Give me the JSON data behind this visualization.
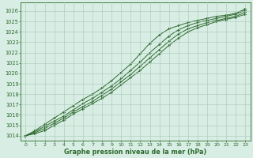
{
  "xlabel": "Graphe pression niveau de la mer (hPa)",
  "background_color": "#d8ede4",
  "plot_bg_color": "#d8ede4",
  "grid_color": "#a8c8b8",
  "line_color": "#2d6a2d",
  "text_color": "#2d6a2d",
  "xlim": [
    -0.5,
    23.5
  ],
  "ylim": [
    1013.5,
    1026.8
  ],
  "yticks": [
    1014,
    1015,
    1016,
    1017,
    1018,
    1019,
    1020,
    1021,
    1022,
    1023,
    1024,
    1025,
    1026
  ],
  "xticks": [
    0,
    1,
    2,
    3,
    4,
    5,
    6,
    7,
    8,
    9,
    10,
    11,
    12,
    13,
    14,
    15,
    16,
    17,
    18,
    19,
    20,
    21,
    22,
    23
  ],
  "lines": [
    {
      "x": [
        0,
        1,
        2,
        3,
        4,
        5,
        6,
        7,
        8,
        9,
        10,
        11,
        12,
        13,
        14,
        15,
        16,
        17,
        18,
        19,
        20,
        21,
        22,
        23
      ],
      "y": [
        1014.0,
        1014.2,
        1014.5,
        1015.0,
        1015.5,
        1016.1,
        1016.6,
        1017.1,
        1017.6,
        1018.2,
        1018.9,
        1019.6,
        1020.3,
        1021.1,
        1021.9,
        1022.7,
        1023.4,
        1024.0,
        1024.4,
        1024.7,
        1025.0,
        1025.2,
        1025.4,
        1025.7
      ]
    },
    {
      "x": [
        0,
        1,
        2,
        3,
        4,
        5,
        6,
        7,
        8,
        9,
        10,
        11,
        12,
        13,
        14,
        15,
        16,
        17,
        18,
        19,
        20,
        21,
        22,
        23
      ],
      "y": [
        1014.0,
        1014.3,
        1014.7,
        1015.2,
        1015.7,
        1016.3,
        1016.8,
        1017.3,
        1017.9,
        1018.5,
        1019.2,
        1019.9,
        1020.7,
        1021.5,
        1022.3,
        1023.1,
        1023.8,
        1024.3,
        1024.6,
        1024.9,
        1025.1,
        1025.3,
        1025.5,
        1025.9
      ]
    },
    {
      "x": [
        0,
        1,
        2,
        3,
        4,
        5,
        6,
        7,
        8,
        9,
        10,
        11,
        12,
        13,
        14,
        15,
        16,
        17,
        18,
        19,
        20,
        21,
        22,
        23
      ],
      "y": [
        1014.0,
        1014.4,
        1014.9,
        1015.4,
        1015.9,
        1016.5,
        1017.1,
        1017.6,
        1018.2,
        1018.8,
        1019.5,
        1020.3,
        1021.1,
        1022.0,
        1022.8,
        1023.6,
        1024.2,
        1024.6,
        1024.9,
        1025.1,
        1025.3,
        1025.5,
        1025.7,
        1026.1
      ]
    },
    {
      "x": [
        0,
        1,
        2,
        3,
        4,
        5,
        6,
        7,
        8,
        9,
        10,
        11,
        12,
        13,
        14,
        15,
        16,
        17,
        18,
        19,
        20,
        21,
        22,
        23
      ],
      "y": [
        1014.0,
        1014.5,
        1015.1,
        1015.7,
        1016.3,
        1016.9,
        1017.5,
        1018.0,
        1018.6,
        1019.3,
        1020.1,
        1020.9,
        1021.9,
        1022.9,
        1023.7,
        1024.3,
        1024.6,
        1024.9,
        1025.1,
        1025.3,
        1025.5,
        1025.6,
        1025.8,
        1026.2
      ]
    }
  ]
}
